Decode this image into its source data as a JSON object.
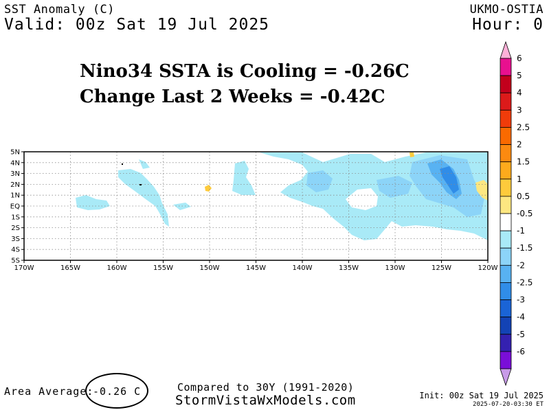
{
  "header": {
    "title": "SST Anomaly (C)",
    "valid": "Valid: 00z Sat 19 Jul 2025",
    "source": "UKMO-OSTIA",
    "hour": "Hour: 0"
  },
  "headline": {
    "line1": "Nino34 SSTA is Cooling = -0.26C",
    "line2": "Change Last 2 Weeks = -0.42C"
  },
  "map": {
    "lat_labels": [
      "5N",
      "4N",
      "3N",
      "2N",
      "1N",
      "EQ",
      "1S",
      "2S",
      "3S",
      "4S",
      "5S"
    ],
    "lon_labels": [
      "170W",
      "165W",
      "160W",
      "155W",
      "150W",
      "145W",
      "140W",
      "135W",
      "130W",
      "125W",
      "120W"
    ]
  },
  "colorbar": {
    "levels": [
      "6",
      "5",
      "4",
      "3",
      "2.5",
      "2",
      "1.5",
      "1",
      "0.5",
      "-0.5",
      "-1",
      "-1.5",
      "-2",
      "-2.5",
      "-3",
      "-4",
      "-5",
      "-6"
    ],
    "colors": [
      "#ffb0d8",
      "#e8108f",
      "#c2001c",
      "#dc1a1a",
      "#f03c0a",
      "#fa6a00",
      "#fc8a10",
      "#fdaa1c",
      "#fecb3c",
      "#fde781",
      "#ffffff",
      "#a9eaf7",
      "#8cd4f8",
      "#58b2f2",
      "#308de8",
      "#1a64d6",
      "#1343b5",
      "#3421b0",
      "#7a0ed8",
      "#c89be8"
    ]
  },
  "footer": {
    "area_label": "Area Average:",
    "area_value": "-0.26 C",
    "compare": "Compared to 30Y (1991-2020)",
    "website": "StormVistaWxModels.com",
    "init": "Init: 00z Sat 19 Jul 2025",
    "stamp": "2025-07-20-03:30 ET"
  }
}
